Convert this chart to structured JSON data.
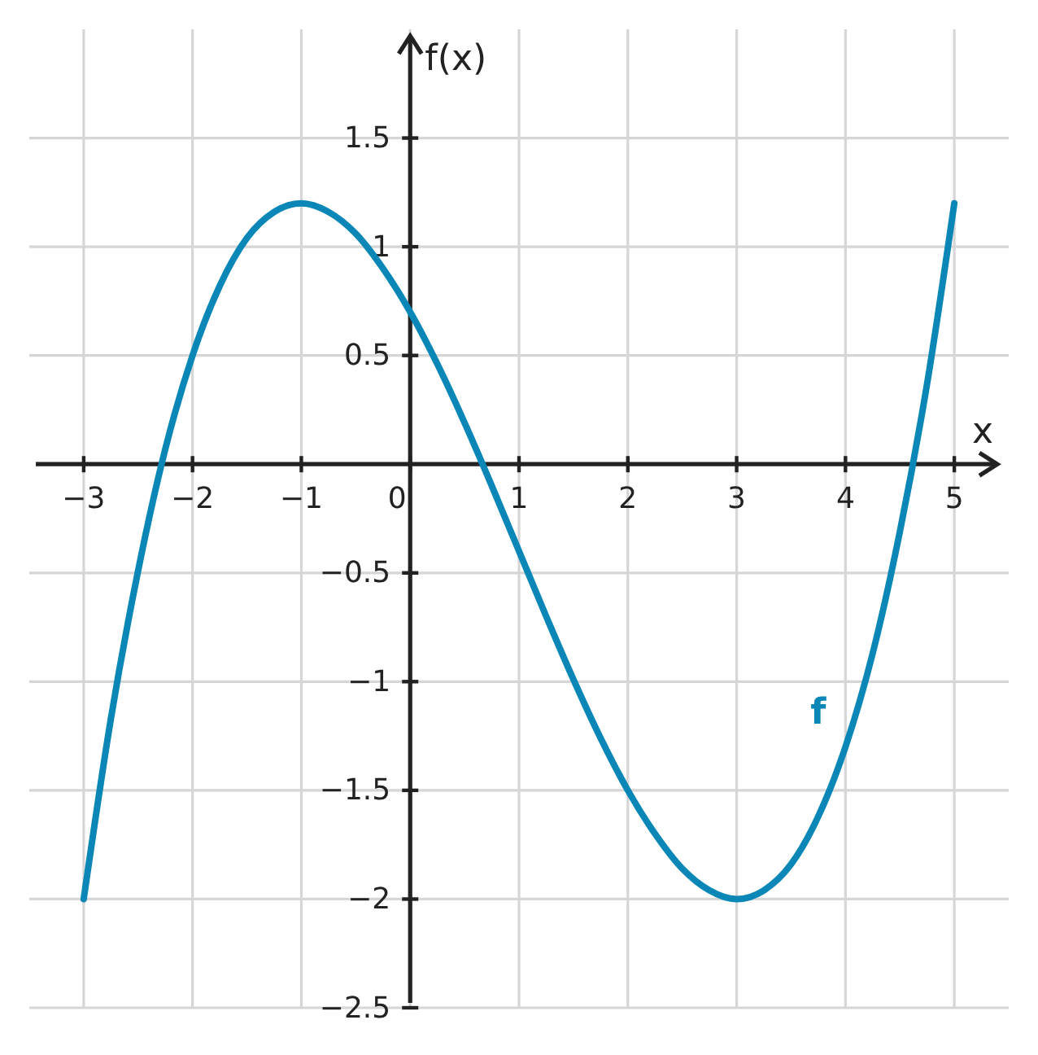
{
  "chart_data": {
    "type": "line",
    "xlabel": "x",
    "ylabel": "f(x)",
    "x": [
      -3,
      -2.75,
      -2.5,
      -2.25,
      -2,
      -1.75,
      -1.5,
      -1.25,
      -1,
      -0.75,
      -0.5,
      -0.25,
      0,
      0.25,
      0.5,
      0.75,
      1,
      1.25,
      1.5,
      1.75,
      2,
      2.25,
      2.5,
      2.75,
      3,
      3.25,
      3.5,
      3.75,
      4,
      4.25,
      4.5,
      4.75,
      5
    ],
    "series": [
      {
        "name": "f",
        "color": "#0a87b6",
        "values": [
          -2,
          -1.17,
          -0.49,
          0.07,
          0.5,
          0.82,
          1.04,
          1.16,
          1.2,
          1.16,
          1.06,
          0.9,
          0.7,
          0.46,
          0.19,
          -0.1,
          -0.4,
          -0.7,
          -0.99,
          -1.26,
          -1.5,
          -1.7,
          -1.86,
          -1.96,
          -2,
          -1.96,
          -1.84,
          -1.62,
          -1.3,
          -0.87,
          -0.31,
          0.37,
          1.2
        ]
      }
    ],
    "xlim": [
      -3.5,
      5.5
    ],
    "ylim": [
      -2.5,
      2
    ],
    "xticks": [
      {
        "value": -3,
        "label": "−3"
      },
      {
        "value": -2,
        "label": "−2"
      },
      {
        "value": -1,
        "label": "−1"
      },
      0,
      1,
      2,
      3,
      4,
      5
    ],
    "yticks": [
      {
        "value": -2.5,
        "label": "−2.5"
      },
      {
        "value": -2,
        "label": "−2"
      },
      {
        "value": -1.5,
        "label": "−1.5"
      },
      {
        "value": -1,
        "label": "−1"
      },
      {
        "value": -0.5,
        "label": "−0.5"
      },
      0.5,
      1,
      1.5
    ],
    "grid": true
  }
}
